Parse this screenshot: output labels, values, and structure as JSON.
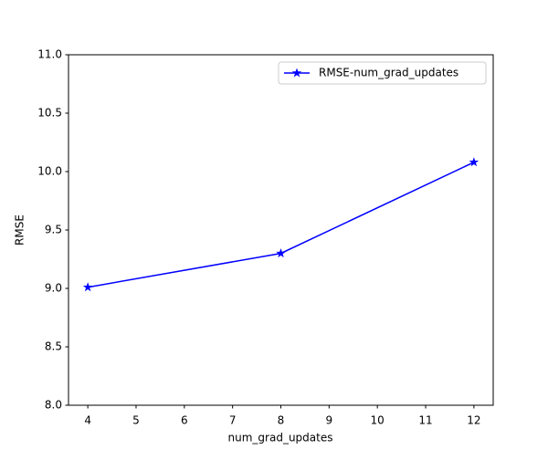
{
  "chart_data": {
    "type": "line",
    "xlabel": "num_grad_updates",
    "ylabel": "RMSE",
    "x": [
      4,
      8,
      12
    ],
    "series": [
      {
        "name": "RMSE-num_grad_updates",
        "color": "#0000ff",
        "marker": "star",
        "values": [
          9.01,
          9.3,
          10.08
        ]
      }
    ],
    "xlim": [
      3.6,
      12.4
    ],
    "xticks": [
      4,
      5,
      6,
      7,
      8,
      9,
      10,
      11,
      12
    ],
    "ylim": [
      8,
      11
    ],
    "yticks": [
      {
        "value": 8,
        "label": "8.0"
      },
      8.5,
      {
        "value": 9,
        "label": "9.0"
      },
      9.5,
      {
        "value": 10,
        "label": "10.0"
      },
      10.5,
      {
        "value": 11,
        "label": "11.0"
      }
    ],
    "grid": false,
    "legend": "upper right"
  }
}
